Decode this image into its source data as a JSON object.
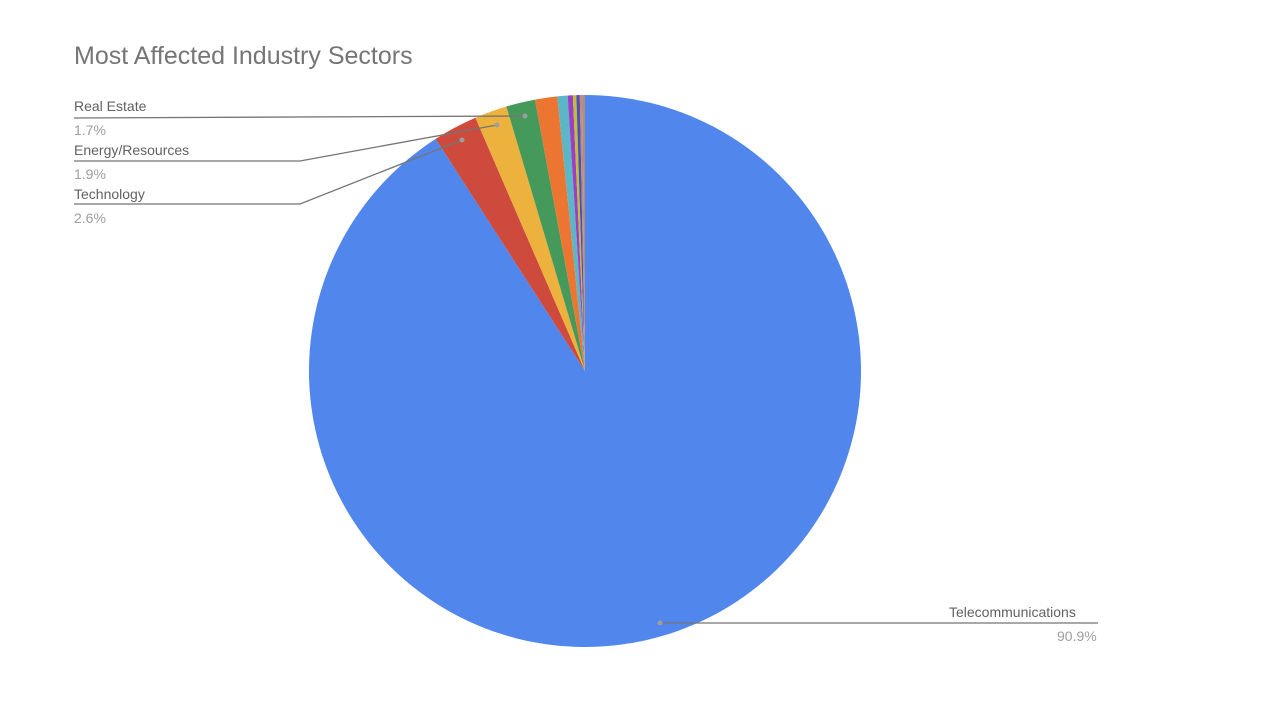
{
  "chart_data": {
    "type": "pie",
    "title": "Most Affected Industry Sectors",
    "slices": [
      {
        "label": "Telecommunications",
        "value": 90.9,
        "color": "#5186EC",
        "labeled": true
      },
      {
        "label": "Technology",
        "value": 2.6,
        "color": "#CD4A3C",
        "labeled": true
      },
      {
        "label": "Energy/Resources",
        "value": 1.9,
        "color": "#EDB23D",
        "labeled": true
      },
      {
        "label": "Real Estate",
        "value": 1.7,
        "color": "#45995A",
        "labeled": true
      },
      {
        "label": "",
        "value": 1.3,
        "color": "#EC7532",
        "labeled": false
      },
      {
        "label": "",
        "value": 0.6,
        "color": "#5BB6C6",
        "labeled": false
      },
      {
        "label": "",
        "value": 0.3,
        "color": "#9C3FC4",
        "labeled": false
      },
      {
        "label": "",
        "value": 0.2,
        "color": "#C3BD36",
        "labeled": false
      },
      {
        "label": "",
        "value": 0.2,
        "color": "#4B52B0",
        "labeled": false
      },
      {
        "label": "",
        "value": 0.15,
        "color": "#C98686",
        "labeled": false
      },
      {
        "label": "",
        "value": 0.15,
        "color": "#A8927C",
        "labeled": false
      }
    ],
    "legend": "none (inline callout labels)",
    "center": [
      585,
      371
    ],
    "radius": 276
  },
  "labels": {
    "title": "Most Affected Industry Sectors",
    "real_estate": {
      "name": "Real Estate",
      "pct": "1.7%"
    },
    "energy": {
      "name": "Energy/Resources",
      "pct": "1.9%"
    },
    "technology": {
      "name": "Technology",
      "pct": "2.6%"
    },
    "telecom": {
      "name": "Telecommunications",
      "pct": "90.9%"
    }
  }
}
